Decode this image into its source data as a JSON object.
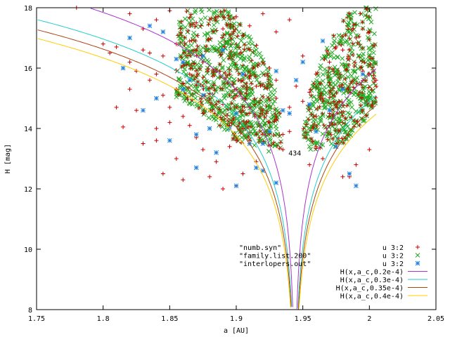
{
  "chart_data": {
    "type": "scatter",
    "xlabel": "a [AU]",
    "ylabel": "H [mag]",
    "xlim": [
      1.75,
      2.05
    ],
    "ylim": [
      8,
      18
    ],
    "x_ticks": [
      "1.75",
      "1.8",
      "1.85",
      "1.9",
      "1.95",
      "2",
      "2.05"
    ],
    "y_ticks": [
      "8",
      "10",
      "12",
      "14",
      "16",
      "18"
    ],
    "grid": false,
    "legend_placement": "bottom-right",
    "annotation": "434",
    "annotation_point": [
      1.944,
      13.2
    ],
    "series": [
      {
        "type": "scatter",
        "marker": "plus",
        "color": "#cc0000",
        "legend_left": "\"numb.syn\"",
        "legend_right": "u 3:2",
        "points": [
          [
            1.78,
            18.0
          ],
          [
            1.8,
            16.8
          ],
          [
            1.81,
            16.7
          ],
          [
            1.82,
            17.8
          ],
          [
            1.83,
            17.3
          ],
          [
            1.84,
            17.6
          ],
          [
            1.85,
            17.9
          ],
          [
            1.81,
            14.7
          ],
          [
            1.815,
            14.05
          ],
          [
            1.82,
            15.3
          ],
          [
            1.825,
            15.9
          ],
          [
            1.83,
            13.5
          ],
          [
            1.835,
            15.6
          ],
          [
            1.84,
            13.6
          ],
          [
            1.845,
            15.1
          ],
          [
            1.85,
            14.2
          ],
          [
            1.855,
            13.0
          ],
          [
            1.86,
            15.5
          ],
          [
            1.865,
            14.1
          ],
          [
            1.87,
            16.6
          ],
          [
            1.875,
            13.3
          ],
          [
            1.88,
            15.0
          ],
          [
            1.885,
            12.9
          ],
          [
            1.89,
            14.8
          ],
          [
            1.895,
            13.4
          ],
          [
            1.9,
            15.3
          ],
          [
            1.905,
            12.5
          ],
          [
            1.91,
            14.5
          ],
          [
            1.915,
            12.9
          ],
          [
            1.92,
            16.2
          ],
          [
            1.845,
            12.5
          ],
          [
            1.86,
            12.3
          ],
          [
            1.88,
            12.4
          ],
          [
            1.9,
            12.1
          ],
          [
            1.89,
            12.0
          ],
          [
            1.835,
            16.5
          ],
          [
            1.845,
            16.4
          ],
          [
            1.855,
            16.8
          ],
          [
            1.865,
            16.9
          ],
          [
            1.875,
            16.2
          ],
          [
            1.885,
            15.9
          ],
          [
            1.895,
            15.8
          ],
          [
            1.905,
            15.6
          ],
          [
            1.915,
            15.4
          ],
          [
            1.92,
            14.6
          ],
          [
            1.93,
            15.0
          ],
          [
            1.935,
            13.8
          ],
          [
            1.97,
            14.5
          ],
          [
            1.975,
            13.5
          ],
          [
            1.98,
            12.4
          ],
          [
            1.955,
            12.8
          ],
          [
            1.96,
            13.4
          ],
          [
            1.965,
            13.0
          ],
          [
            1.985,
            12.4
          ],
          [
            1.99,
            12.8
          ],
          [
            2.0,
            13.3
          ],
          [
            2.005,
            15.6
          ],
          [
            1.995,
            15.9
          ],
          [
            1.985,
            16.3
          ],
          [
            1.975,
            16.7
          ],
          [
            1.87,
            17.5
          ],
          [
            1.88,
            17.6
          ],
          [
            1.89,
            17.3
          ],
          [
            1.9,
            17.7
          ],
          [
            1.91,
            17.4
          ],
          [
            1.92,
            17.8
          ],
          [
            1.93,
            17.2
          ],
          [
            1.94,
            17.6
          ],
          [
            1.95,
            16.4
          ],
          [
            1.96,
            15.8
          ],
          [
            1.97,
            16.2
          ],
          [
            1.98,
            16.6
          ],
          [
            1.99,
            17.0
          ],
          [
            1.995,
            17.3
          ],
          [
            2.0,
            17.2
          ],
          [
            1.93,
            14.3
          ],
          [
            1.94,
            13.9
          ],
          [
            1.935,
            13.3
          ],
          [
            1.94,
            14.7
          ],
          [
            1.95,
            14.9
          ],
          [
            1.925,
            14.2
          ],
          [
            1.915,
            13.8
          ],
          [
            1.905,
            14.0
          ],
          [
            1.9,
            13.6
          ],
          [
            1.895,
            14.1
          ],
          [
            1.875,
            14.5
          ],
          [
            1.87,
            13.7
          ],
          [
            1.86,
            14.4
          ],
          [
            1.85,
            14.7
          ],
          [
            1.84,
            14.0
          ],
          [
            1.825,
            14.6
          ],
          [
            1.815,
            16.0
          ],
          [
            1.805,
            16.5
          ],
          [
            1.82,
            16.2
          ],
          [
            1.83,
            16.6
          ],
          [
            1.84,
            15.8
          ],
          [
            1.855,
            15.3
          ],
          [
            1.865,
            15.8
          ],
          [
            1.875,
            15.4
          ],
          [
            1.885,
            14.8
          ],
          [
            1.895,
            15.1
          ],
          [
            1.91,
            15.7
          ],
          [
            1.925,
            16.0
          ],
          [
            1.93,
            15.6
          ],
          [
            1.945,
            15.4
          ],
          [
            1.955,
            15.2
          ],
          [
            1.965,
            15.0
          ],
          [
            1.96,
            14.4
          ],
          [
            1.97,
            14.1
          ],
          [
            1.975,
            14.8
          ]
        ]
      },
      {
        "type": "scatter",
        "marker": "x",
        "color": "#22aa22",
        "legend_left": "\"family.list.200\"",
        "legend_right": "u 3:2",
        "points": []
      },
      {
        "type": "scatter",
        "marker": "star",
        "color": "#2080dd",
        "legend_left": "\"interlopers.out\"",
        "legend_right": "u 3:2",
        "points": [
          [
            1.815,
            16.0
          ],
          [
            1.82,
            17.0
          ],
          [
            1.83,
            14.6
          ],
          [
            1.835,
            17.4
          ],
          [
            1.845,
            17.2
          ],
          [
            1.855,
            16.3
          ],
          [
            1.86,
            15.3
          ],
          [
            1.865,
            15.6
          ],
          [
            1.87,
            13.8
          ],
          [
            1.87,
            12.7
          ],
          [
            1.875,
            15.1
          ],
          [
            1.88,
            14.0
          ],
          [
            1.885,
            13.2
          ],
          [
            1.89,
            16.6
          ],
          [
            1.895,
            14.0
          ],
          [
            1.9,
            12.1
          ],
          [
            1.905,
            15.8
          ],
          [
            1.91,
            13.5
          ],
          [
            1.915,
            12.7
          ],
          [
            1.92,
            12.6
          ],
          [
            1.925,
            13.9
          ],
          [
            1.93,
            12.2
          ],
          [
            1.935,
            14.6
          ],
          [
            1.945,
            15.6
          ],
          [
            1.95,
            16.2
          ],
          [
            1.955,
            14.8
          ],
          [
            1.96,
            13.9
          ],
          [
            1.965,
            16.9
          ],
          [
            1.97,
            14.6
          ],
          [
            1.975,
            13.4
          ],
          [
            1.98,
            15.3
          ],
          [
            1.985,
            12.5
          ],
          [
            1.99,
            12.1
          ],
          [
            1.995,
            15.8
          ],
          [
            1.84,
            15.0
          ],
          [
            1.85,
            13.6
          ],
          [
            1.86,
            16.2
          ],
          [
            1.875,
            16.4
          ],
          [
            1.9,
            14.5
          ],
          [
            1.92,
            13.5
          ],
          [
            1.93,
            15.9
          ],
          [
            1.94,
            14.5
          ]
        ]
      },
      {
        "type": "line",
        "color": "#aa33cc",
        "legend_left": "",
        "legend_right": "H(x,a_c,0.2e-4)",
        "C": 2e-05,
        "ac": 1.944
      },
      {
        "type": "line",
        "color": "#22cccc",
        "legend_left": "",
        "legend_right": "H(x,a_c,0.3e-4)",
        "C": 3e-05,
        "ac": 1.944
      },
      {
        "type": "line",
        "color": "#aa4411",
        "legend_left": "",
        "legend_right": "H(x,a_c,0.35e-4)",
        "C": 3.5e-05,
        "ac": 1.944
      },
      {
        "type": "line",
        "color": "#ffcc00",
        "legend_left": "",
        "legend_right": "H(x,a_c,0.4e-4)",
        "C": 4e-05,
        "ac": 1.944
      }
    ]
  }
}
